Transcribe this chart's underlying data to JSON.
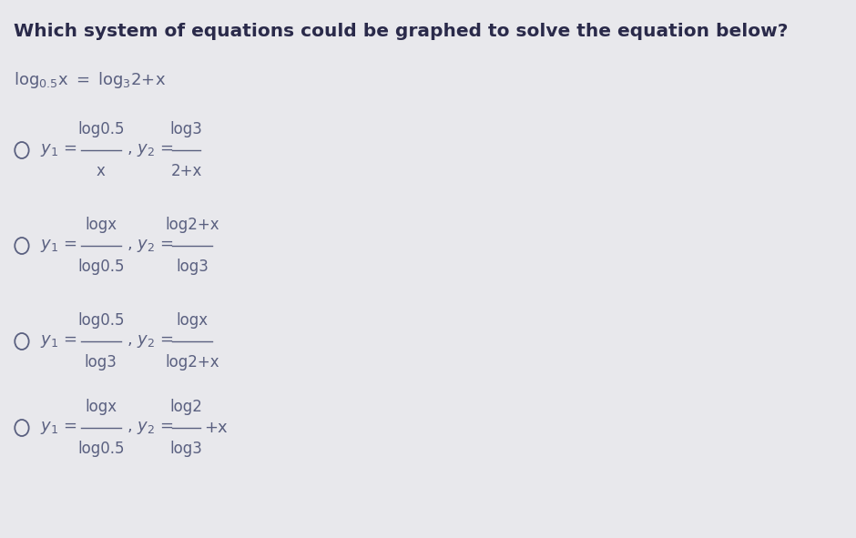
{
  "background_color": "#e8e8ec",
  "title": "Which system of equations could be graphed to solve the equation below?",
  "title_fontsize": 14.5,
  "title_color": "#2a2a4a",
  "text_color": "#5a6080",
  "circle_color": "#5a6080",
  "main_eq_fontsize": 13,
  "option_fontsize": 13,
  "options": [
    {
      "frac1_num": "log0.5",
      "frac1_den": "x",
      "frac2_num": "log3",
      "frac2_den": "2+x",
      "has_plus": false,
      "plus_text": ""
    },
    {
      "frac1_num": "logx",
      "frac1_den": "log0.5",
      "frac2_num": "log2+x",
      "frac2_den": "log3",
      "has_plus": false,
      "plus_text": ""
    },
    {
      "frac1_num": "log0.5",
      "frac1_den": "log3",
      "frac2_num": "logx",
      "frac2_den": "log2+x",
      "has_plus": false,
      "plus_text": ""
    },
    {
      "frac1_num": "logx",
      "frac1_den": "log0.5",
      "frac2_num": "log2",
      "frac2_den": "log3",
      "has_plus": true,
      "plus_text": "+x"
    }
  ]
}
